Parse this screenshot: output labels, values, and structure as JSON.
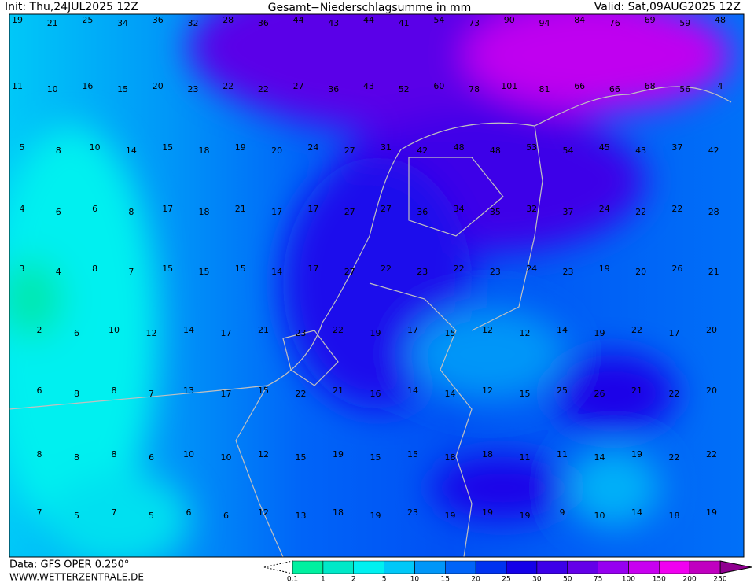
{
  "header": {
    "init": "Init: Thu,24JUL2025 12Z",
    "title": "Gesamt−Niederschlagsumme in mm",
    "valid": "Valid: Sat,09AUG2025 12Z"
  },
  "footer": {
    "data": "Data: GFS OPER 0.250°",
    "site": "WWW.WETTERZENTRALE.DE"
  },
  "map": {
    "rows": [
      [
        19,
        21,
        25,
        34,
        36,
        32,
        28,
        36,
        44,
        43,
        44,
        41,
        54,
        73,
        90,
        94,
        84,
        76,
        69,
        59,
        48
      ],
      [
        11,
        10,
        16,
        15,
        20,
        23,
        22,
        22,
        27,
        36,
        43,
        52,
        60,
        78,
        101,
        81,
        66,
        66,
        68,
        56,
        4
      ],
      [
        5,
        8,
        10,
        14,
        15,
        18,
        19,
        20,
        24,
        27,
        31,
        42,
        48,
        48,
        53,
        54,
        45,
        43,
        37,
        42
      ],
      [
        4,
        6,
        6,
        8,
        17,
        18,
        21,
        17,
        17,
        27,
        27,
        36,
        34,
        35,
        32,
        37,
        24,
        22,
        22,
        28
      ],
      [
        3,
        4,
        8,
        7,
        15,
        15,
        15,
        14,
        17,
        27,
        22,
        23,
        22,
        23,
        24,
        23,
        19,
        20,
        26,
        21
      ],
      [
        2,
        6,
        10,
        12,
        14,
        17,
        21,
        23,
        22,
        19,
        17,
        15,
        12,
        12,
        14,
        19,
        22,
        17,
        20
      ],
      [
        6,
        8,
        8,
        7,
        13,
        17,
        15,
        22,
        21,
        16,
        14,
        14,
        12,
        15,
        25,
        26,
        21,
        22,
        20
      ],
      [
        8,
        8,
        8,
        6,
        10,
        10,
        12,
        15,
        19,
        15,
        15,
        18,
        18,
        11,
        11,
        14,
        19,
        22,
        22
      ],
      [
        7,
        5,
        7,
        5,
        6,
        6,
        12,
        13,
        18,
        19,
        23,
        19,
        19,
        19,
        9,
        10,
        14,
        18,
        19
      ]
    ]
  },
  "legend": {
    "ticks": [
      0.1,
      1,
      2,
      5,
      10,
      15,
      20,
      25,
      30,
      50,
      75,
      100,
      150,
      200,
      250
    ],
    "colors": [
      "#00f0a0",
      "#00e8c8",
      "#00f0f0",
      "#00c8f8",
      "#0096f8",
      "#0064f8",
      "#0032f0",
      "#1400e8",
      "#3c00e8",
      "#6400e8",
      "#9600f0",
      "#c800f0",
      "#f000f0",
      "#c000c0"
    ]
  }
}
